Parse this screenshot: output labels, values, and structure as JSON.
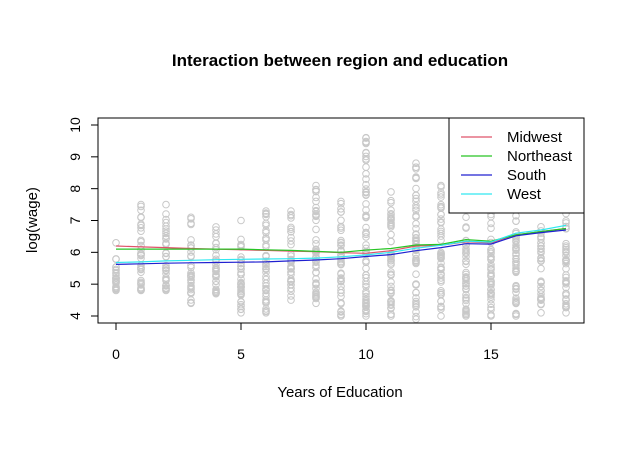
{
  "chart_data": {
    "type": "scatter",
    "title": "Interaction between region and education",
    "xlabel": "Years of Education",
    "ylabel": "log(wage)",
    "xlim": [
      -0.72,
      18.72
    ],
    "ylim": [
      3.78,
      10.22
    ],
    "x_ticks": [
      0,
      5,
      10,
      15
    ],
    "y_ticks": [
      4,
      5,
      6,
      7,
      8,
      9,
      10
    ],
    "grid": false,
    "legend_position": "top-right",
    "point_color": "#c8c8c8",
    "scatter_ranges": {
      "x": [
        0,
        1,
        2,
        3,
        4,
        5,
        6,
        7,
        8,
        9,
        10,
        11,
        12,
        13,
        14,
        15,
        16,
        17,
        18
      ],
      "low": [
        4.8,
        4.8,
        4.8,
        4.4,
        4.7,
        4.1,
        4.1,
        4.5,
        4.4,
        4.0,
        4.0,
        4.0,
        3.9,
        4.0,
        4.0,
        4.0,
        4.0,
        4.1,
        4.1
      ],
      "high": [
        6.3,
        7.5,
        7.5,
        7.1,
        6.8,
        7.0,
        7.3,
        7.3,
        8.1,
        7.6,
        9.6,
        7.9,
        8.8,
        8.1,
        7.8,
        7.9,
        7.9,
        8.0,
        7.9
      ]
    },
    "x": [
      0,
      1,
      2,
      3,
      4,
      5,
      6,
      7,
      8,
      9,
      10,
      11,
      12,
      13,
      14,
      15,
      16,
      17,
      18
    ],
    "series": [
      {
        "name": "Midwest",
        "color": "#df536b",
        "values": [
          6.2,
          6.17,
          6.15,
          6.12,
          6.1,
          6.08,
          6.06,
          6.04,
          6.02,
          5.99,
          5.97,
          6.05,
          6.2,
          6.22,
          6.33,
          6.3,
          6.55,
          6.65,
          6.75
        ]
      },
      {
        "name": "Northeast",
        "color": "#28c425",
        "values": [
          6.1,
          6.1,
          6.1,
          6.1,
          6.1,
          6.1,
          6.08,
          6.06,
          6.03,
          6.0,
          6.07,
          6.12,
          6.23,
          6.25,
          6.4,
          6.35,
          6.55,
          6.65,
          6.75
        ]
      },
      {
        "name": "South",
        "color": "#2020d0",
        "values": [
          5.62,
          5.64,
          5.66,
          5.67,
          5.68,
          5.69,
          5.7,
          5.73,
          5.76,
          5.8,
          5.87,
          5.93,
          6.05,
          6.15,
          6.27,
          6.26,
          6.52,
          6.62,
          6.7
        ]
      },
      {
        "name": "West",
        "color": "#30e8f0",
        "values": [
          5.68,
          5.7,
          5.73,
          5.75,
          5.77,
          5.78,
          5.79,
          5.8,
          5.82,
          5.86,
          5.92,
          6.0,
          6.13,
          6.22,
          6.35,
          6.32,
          6.6,
          6.7,
          6.85
        ]
      }
    ]
  }
}
